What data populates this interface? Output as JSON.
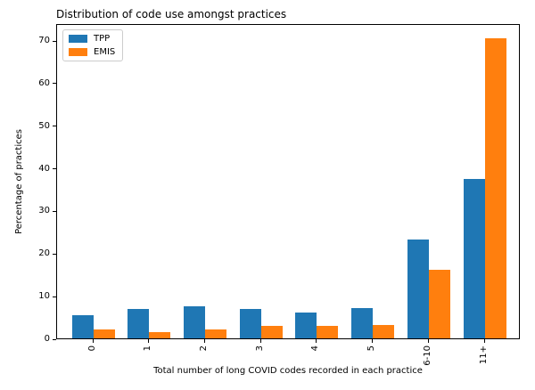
{
  "chart_data": {
    "type": "bar",
    "title": "Distribution of code use amongst practices",
    "xlabel": "Total number of long COVID codes recorded in each practice",
    "ylabel": "Percentage of practices",
    "categories": [
      "0",
      "1",
      "2",
      "3",
      "4",
      "5",
      "6-10",
      "11+"
    ],
    "series": [
      {
        "name": "TPP",
        "color": "#1f77b4",
        "values": [
          5.4,
          6.9,
          7.5,
          7.0,
          6.1,
          7.1,
          23.2,
          37.5
        ]
      },
      {
        "name": "EMIS",
        "color": "#ff7f0e",
        "values": [
          2.0,
          1.4,
          2.1,
          2.9,
          2.9,
          3.1,
          16.0,
          70.5
        ]
      }
    ],
    "yticks": [
      0,
      10,
      20,
      30,
      40,
      50,
      60,
      70
    ],
    "ylim": [
      0,
      74
    ],
    "grid": false,
    "legend_position": "upper left"
  }
}
